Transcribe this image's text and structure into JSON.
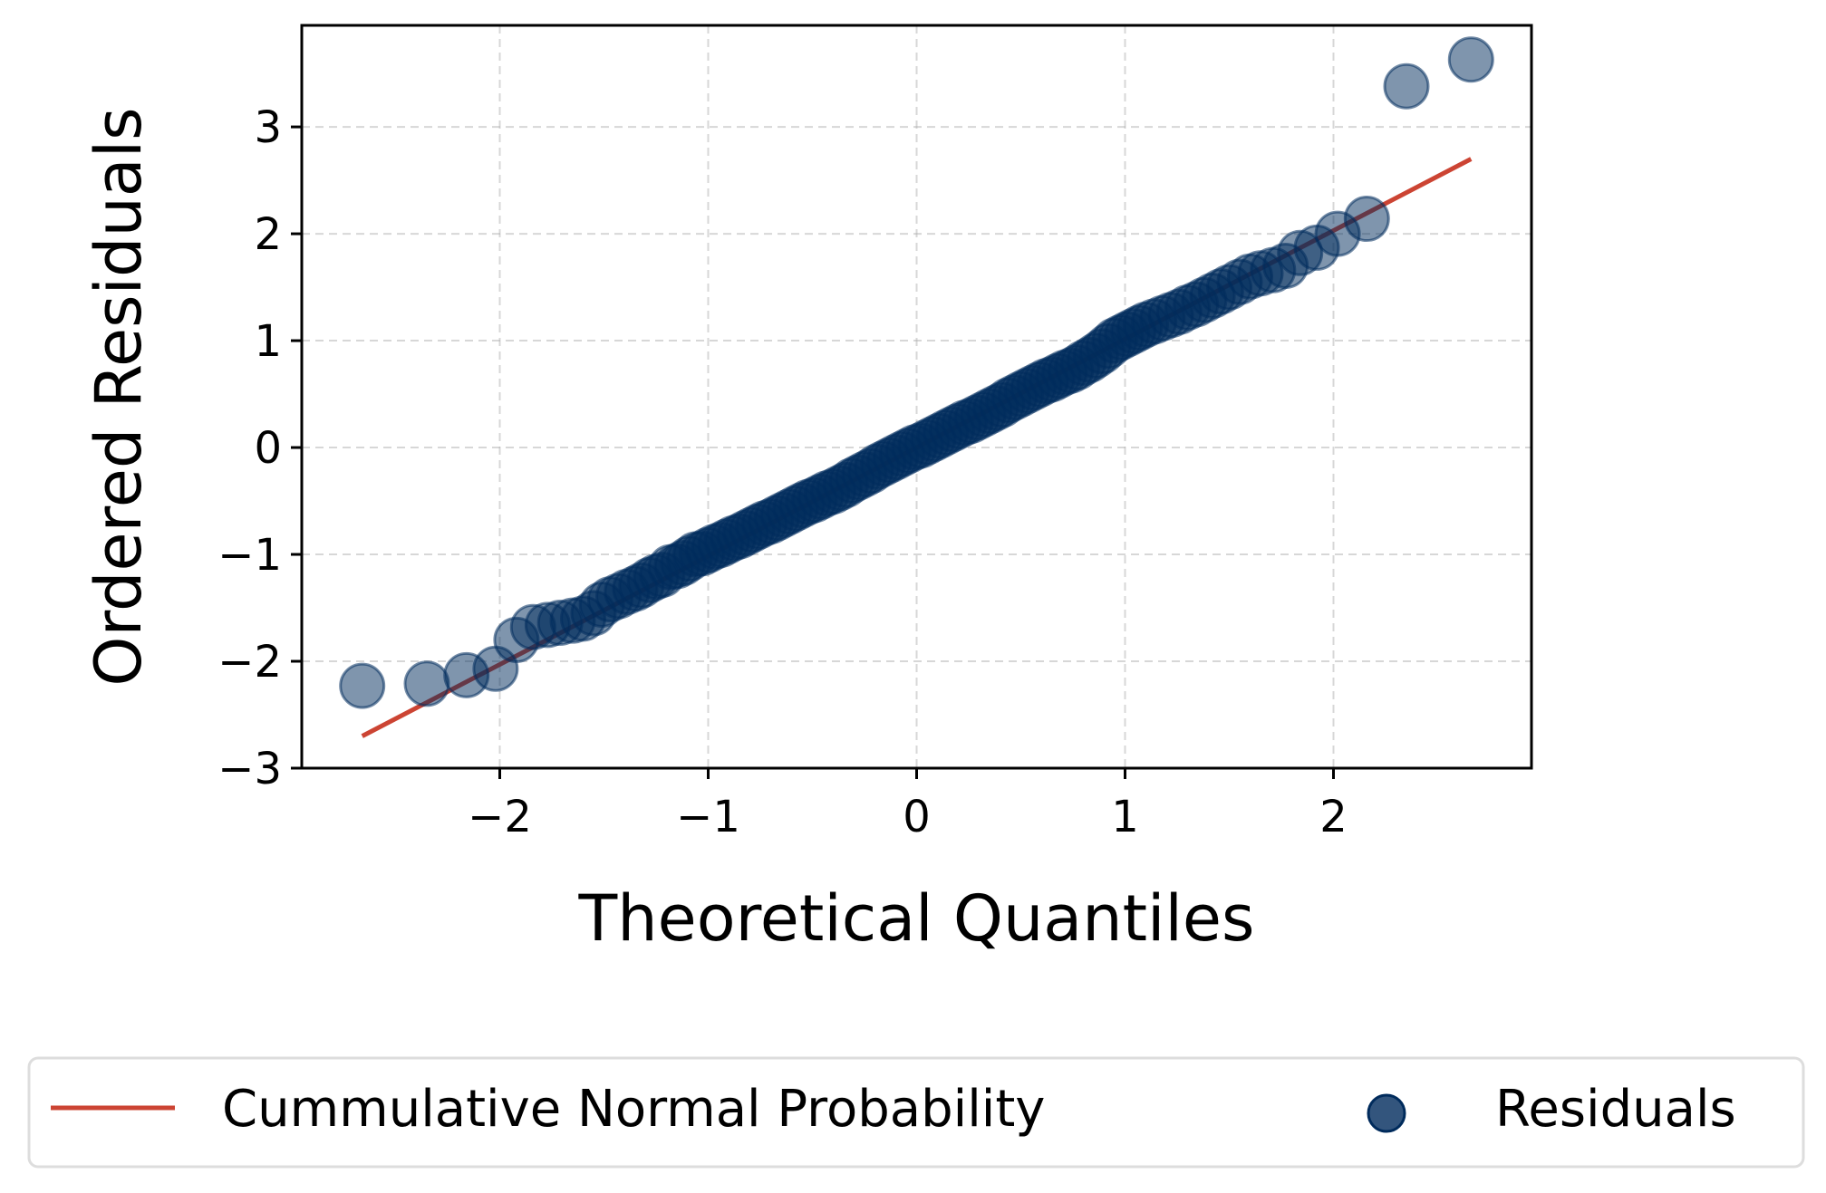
{
  "chart_data": {
    "type": "scatter",
    "title": "",
    "xlabel": "Theoretical Quantiles",
    "ylabel": "Ordered Residuals",
    "xlim": [
      -2.95,
      2.95
    ],
    "ylim": [
      -3.0,
      3.95
    ],
    "xticks": [
      -2,
      -1,
      0,
      1,
      2
    ],
    "xtick_labels": [
      "−2",
      "−1",
      "0",
      "1",
      "2"
    ],
    "yticks": [
      -3,
      -2,
      -1,
      0,
      1,
      2,
      3
    ],
    "ytick_labels": [
      "−3",
      "−2",
      "−1",
      "0",
      "1",
      "2",
      "3"
    ],
    "grid": true,
    "legend_position": "bottom-center, below plot",
    "series": [
      {
        "name": "Residuals",
        "kind": "scatter",
        "color": "#002b5c",
        "x": [
          -2.66,
          -2.35,
          -2.16,
          -2.02,
          -1.92,
          -1.84,
          -1.77,
          -1.71,
          -1.65,
          -1.6,
          -1.55,
          -1.51,
          -1.47,
          -1.43,
          -1.39,
          -1.35,
          -1.32,
          -1.28,
          -1.25,
          -1.22,
          -1.18,
          -1.15,
          -1.12,
          -1.09,
          -1.06,
          -1.03,
          -1.0,
          -0.97,
          -0.94,
          -0.91,
          -0.88,
          -0.85,
          -0.82,
          -0.79,
          -0.76,
          -0.73,
          -0.7,
          -0.67,
          -0.64,
          -0.61,
          -0.58,
          -0.55,
          -0.52,
          -0.49,
          -0.46,
          -0.43,
          -0.4,
          -0.37,
          -0.34,
          -0.31,
          -0.28,
          -0.25,
          -0.22,
          -0.19,
          -0.16,
          -0.13,
          -0.1,
          -0.07,
          -0.04,
          -0.01,
          0.02,
          0.05,
          0.08,
          0.11,
          0.14,
          0.17,
          0.2,
          0.23,
          0.26,
          0.29,
          0.32,
          0.35,
          0.38,
          0.41,
          0.44,
          0.47,
          0.5,
          0.53,
          0.56,
          0.59,
          0.62,
          0.65,
          0.68,
          0.71,
          0.74,
          0.77,
          0.8,
          0.83,
          0.86,
          0.89,
          0.92,
          0.95,
          0.98,
          1.01,
          1.04,
          1.07,
          1.1,
          1.14,
          1.18,
          1.22,
          1.26,
          1.3,
          1.34,
          1.38,
          1.42,
          1.46,
          1.5,
          1.55,
          1.6,
          1.65,
          1.71,
          1.77,
          1.84,
          1.92,
          2.02,
          2.16,
          2.35,
          2.66
        ],
        "y": [
          -2.23,
          -2.21,
          -2.13,
          -2.07,
          -1.8,
          -1.68,
          -1.66,
          -1.64,
          -1.62,
          -1.6,
          -1.55,
          -1.47,
          -1.42,
          -1.39,
          -1.35,
          -1.32,
          -1.29,
          -1.24,
          -1.21,
          -1.19,
          -1.12,
          -1.11,
          -1.08,
          -1.04,
          -1.0,
          -0.99,
          -0.96,
          -0.93,
          -0.91,
          -0.88,
          -0.85,
          -0.83,
          -0.8,
          -0.77,
          -0.74,
          -0.71,
          -0.69,
          -0.66,
          -0.63,
          -0.6,
          -0.57,
          -0.54,
          -0.51,
          -0.49,
          -0.46,
          -0.43,
          -0.41,
          -0.38,
          -0.35,
          -0.31,
          -0.28,
          -0.25,
          -0.22,
          -0.18,
          -0.15,
          -0.12,
          -0.09,
          -0.06,
          -0.03,
          0.0,
          0.02,
          0.05,
          0.08,
          0.11,
          0.14,
          0.17,
          0.2,
          0.23,
          0.25,
          0.28,
          0.31,
          0.34,
          0.37,
          0.4,
          0.44,
          0.47,
          0.5,
          0.53,
          0.56,
          0.59,
          0.62,
          0.64,
          0.67,
          0.7,
          0.72,
          0.75,
          0.79,
          0.82,
          0.86,
          0.9,
          0.95,
          1.0,
          1.03,
          1.06,
          1.09,
          1.12,
          1.15,
          1.18,
          1.21,
          1.24,
          1.27,
          1.31,
          1.34,
          1.38,
          1.42,
          1.46,
          1.5,
          1.55,
          1.6,
          1.63,
          1.66,
          1.7,
          1.82,
          1.87,
          2.0,
          2.14,
          3.38,
          3.63
        ]
      },
      {
        "name": "Cummulative Normal Probability",
        "kind": "line",
        "color": "#cc4433",
        "x": [
          -2.66,
          2.66
        ],
        "y": [
          -2.7,
          2.7
        ]
      }
    ],
    "legend": [
      {
        "label": "Cummulative Normal Probability",
        "kind": "line",
        "color": "#cc4433"
      },
      {
        "label": "Residuals",
        "kind": "marker",
        "color": "#002b5c"
      }
    ]
  }
}
